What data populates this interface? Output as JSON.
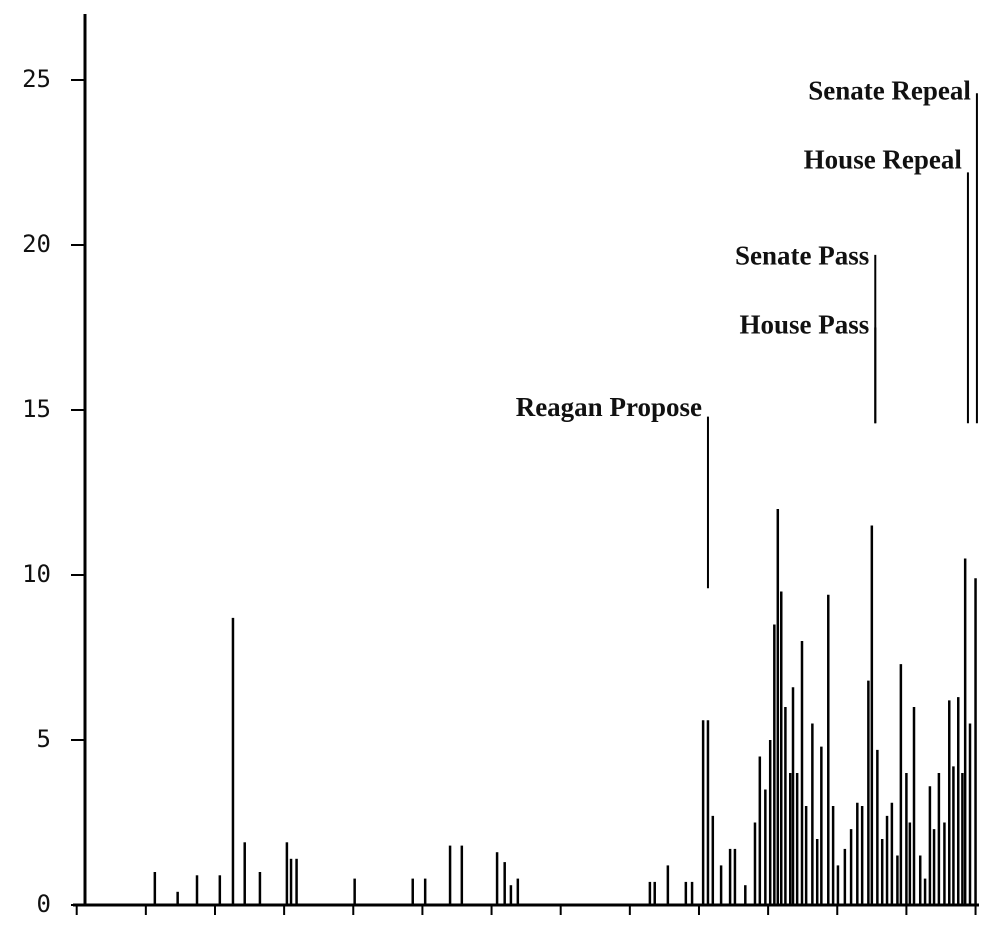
{
  "chart_data": {
    "type": "spike",
    "x": [
      1.13,
      1.46,
      1.74,
      2.07,
      2.26,
      2.43,
      2.65,
      3.04,
      3.1,
      3.18,
      4.02,
      4.86,
      5.04,
      5.4,
      5.57,
      6.08,
      6.19,
      6.28,
      6.38,
      8.29,
      8.36,
      8.55,
      8.81,
      8.9,
      9.06,
      9.13,
      9.2,
      9.32,
      9.45,
      9.52,
      9.67,
      9.81,
      9.88,
      9.96,
      10.03,
      10.09,
      10.14,
      10.19,
      10.25,
      10.32,
      10.36,
      10.42,
      10.49,
      10.55,
      10.64,
      10.71,
      10.77,
      10.87,
      10.94,
      11.01,
      11.11,
      11.2,
      11.29,
      11.36,
      11.45,
      11.5,
      11.58,
      11.65,
      11.72,
      11.79,
      11.87,
      11.92,
      12.0,
      12.05,
      12.11,
      12.2,
      12.27,
      12.34,
      12.4,
      12.47,
      12.55,
      12.62,
      12.68,
      12.75,
      12.81,
      12.85,
      12.92,
      13.0
    ],
    "values": [
      1.0,
      0.4,
      0.9,
      0.9,
      8.7,
      1.9,
      1.0,
      1.9,
      1.4,
      1.4,
      0.8,
      0.8,
      0.8,
      1.8,
      1.8,
      1.6,
      1.3,
      0.6,
      0.8,
      0.7,
      0.7,
      1.2,
      0.7,
      0.7,
      5.6,
      5.6,
      2.7,
      1.2,
      1.7,
      1.7,
      0.6,
      2.5,
      4.5,
      3.5,
      5.0,
      8.5,
      12.0,
      9.5,
      6.0,
      4.0,
      6.6,
      4.0,
      8.0,
      3.0,
      5.5,
      2.0,
      4.8,
      9.4,
      3.0,
      1.2,
      1.7,
      2.3,
      3.1,
      3.0,
      6.8,
      11.5,
      4.7,
      2.0,
      2.7,
      3.1,
      1.5,
      7.3,
      4.0,
      2.5,
      6.0,
      1.5,
      0.8,
      3.6,
      2.3,
      4.0,
      2.5,
      6.2,
      4.2,
      6.3,
      4.0,
      10.5,
      5.5,
      9.9
    ],
    "color": "#000000",
    "xlim": [
      0.12,
      13.05
    ],
    "xticks": [
      0,
      1,
      2,
      3,
      4,
      5,
      6,
      7,
      8,
      9,
      10,
      11,
      12,
      13
    ],
    "ylim": [
      0,
      27
    ],
    "yticks": [
      0,
      5,
      10,
      15,
      20,
      25
    ],
    "annotations": [
      {
        "text": "Reagan Propose",
        "x": 9.13,
        "y": 15.0,
        "y_from": 9.6,
        "y_to": 14.8
      },
      {
        "text": "House Pass",
        "x": 11.55,
        "y": 17.5,
        "y_from": 14.6,
        "y_to": 17.5
      },
      {
        "text": "Senate Pass",
        "x": 11.55,
        "y": 19.6,
        "y_from": 14.6,
        "y_to": 19.7
      },
      {
        "text": "House Repeal",
        "x": 12.89,
        "y": 22.5,
        "y_from": 14.6,
        "y_to": 22.2
      },
      {
        "text": "Senate Repeal",
        "x": 13.02,
        "y": 24.6,
        "y_from": 14.6,
        "y_to": 24.6
      }
    ]
  }
}
